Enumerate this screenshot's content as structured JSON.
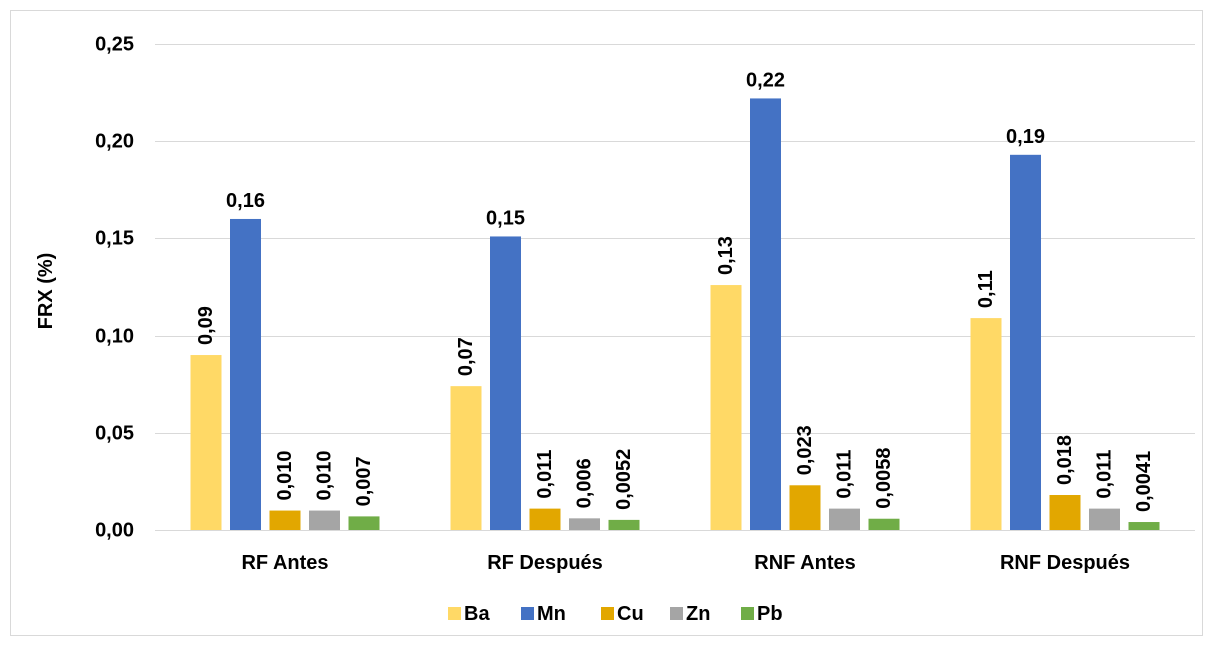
{
  "chart_data": {
    "type": "bar",
    "title": "",
    "xlabel": "",
    "ylabel": "FRX (%)",
    "ylim": [
      0,
      0.25
    ],
    "yticks": [
      "0,00",
      "0,05",
      "0,10",
      "0,15",
      "0,20",
      "0,25"
    ],
    "categories": [
      "RF Antes",
      "RF Después",
      "RNF Antes",
      "RNF Después"
    ],
    "grid": true,
    "legend_position": "bottom",
    "series": [
      {
        "name": "Ba",
        "color": "#ffd966",
        "values": [
          0.09,
          0.074,
          0.126,
          0.109
        ],
        "labels": [
          "0,09",
          "0,07",
          "0,13",
          "0,11"
        ]
      },
      {
        "name": "Mn",
        "color": "#4472c4",
        "values": [
          0.16,
          0.151,
          0.222,
          0.193
        ],
        "labels": [
          "0,16",
          "0,15",
          "0,22",
          "0,19"
        ]
      },
      {
        "name": "Cu",
        "color": "#e2a700",
        "values": [
          0.01,
          0.011,
          0.023,
          0.018
        ],
        "labels": [
          "0,010",
          "0,011",
          "0,023",
          "0,018"
        ]
      },
      {
        "name": "Zn",
        "color": "#a5a5a5",
        "values": [
          0.01,
          0.006,
          0.011,
          0.011
        ],
        "labels": [
          "0,010",
          "0,006",
          "0,011",
          "0,011"
        ]
      },
      {
        "name": "Pb",
        "color": "#70ad47",
        "values": [
          0.007,
          0.0052,
          0.0058,
          0.0041
        ],
        "labels": [
          "0,007",
          "0,0052",
          "0,0058",
          "0,0041"
        ]
      }
    ]
  }
}
